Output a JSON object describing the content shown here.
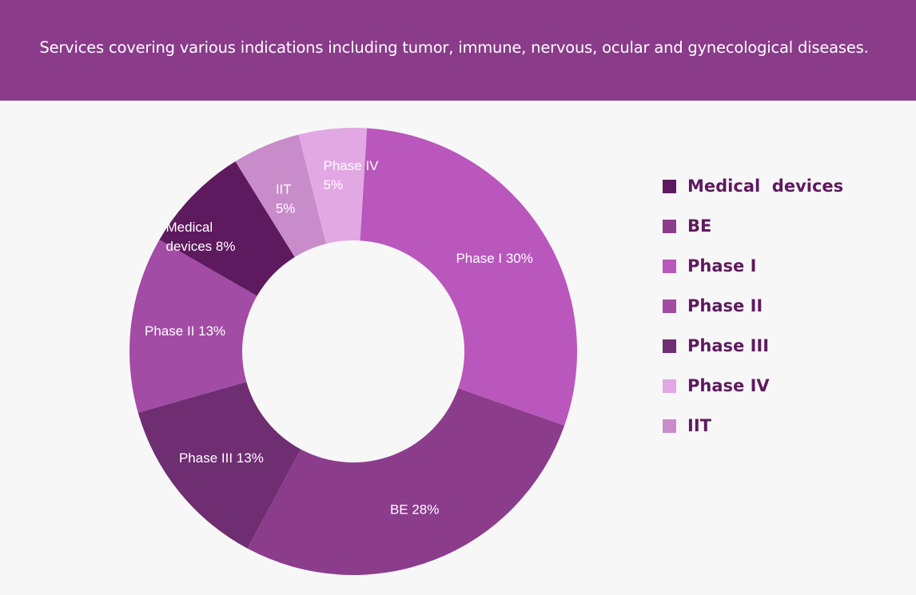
{
  "banner": {
    "text": "Services covering various indications including tumor, immune, nervous, ocular and gynecological diseases."
  },
  "chart_data": {
    "type": "pie",
    "donut": true,
    "title": "",
    "slices": [
      {
        "name": "Phase I",
        "value": 30,
        "color": "#b957bd",
        "label_lines": [
          "Phase I  30%"
        ]
      },
      {
        "name": "BE",
        "value": 28,
        "color": "#8b3d8c",
        "label_lines": [
          "BE 28%"
        ]
      },
      {
        "name": "Phase III",
        "value": 13,
        "color": "#6f2e72",
        "label_lines": [
          "Phase III  13%"
        ]
      },
      {
        "name": "Phase II",
        "value": 13,
        "color": "#a24ca6",
        "label_lines": [
          "Phase II  13%"
        ]
      },
      {
        "name": "Medical devices",
        "value": 8,
        "color": "#5e1a5e",
        "label_lines": [
          "Medical",
          "devices 8%"
        ]
      },
      {
        "name": "IIT",
        "value": 5,
        "color": "#c98ccb",
        "label_lines": [
          "IIT",
          "5%"
        ]
      },
      {
        "name": "Phase IV",
        "value": 5,
        "color": "#e2a8e3",
        "label_lines": [
          "Phase IV",
          "5%"
        ]
      }
    ],
    "legend": {
      "placement": "right",
      "items": [
        {
          "label": "Medical  devices",
          "color": "#5e1a5e"
        },
        {
          "label": "BE",
          "color": "#8b3d8c"
        },
        {
          "label": "Phase I",
          "color": "#b957bd"
        },
        {
          "label": "Phase II",
          "color": "#a24ca6"
        },
        {
          "label": "Phase III",
          "color": "#6f2e72"
        },
        {
          "label": "Phase IV",
          "color": "#e2a8e3"
        },
        {
          "label": "IIT",
          "color": "#c98ccb"
        }
      ]
    }
  }
}
